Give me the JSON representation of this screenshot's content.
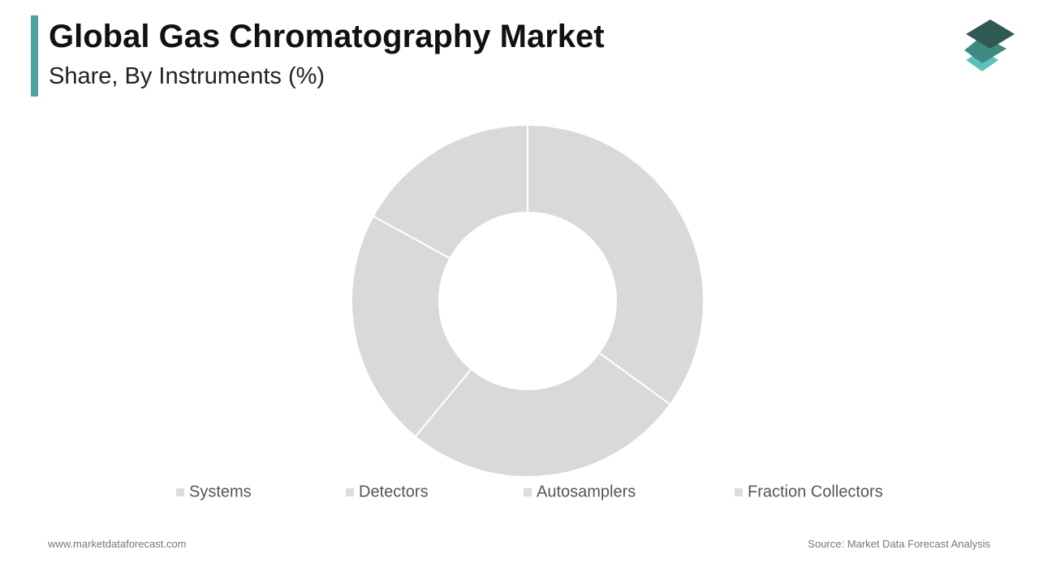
{
  "chart_data": {
    "type": "donut",
    "title": "Global Gas Chromatography Market",
    "subtitle": "Share, By Instruments (%)",
    "categories": [
      "Systems",
      "Detectors",
      "Autosamplers",
      "Fraction Collectors"
    ],
    "values": [
      35,
      26,
      22,
      17
    ],
    "color": "#d9d9d9",
    "legend_color": "#dcdcdc"
  },
  "footer": {
    "website": "www.marketdataforecast.com",
    "source": "Source: Market Data Forecast Analysis"
  }
}
